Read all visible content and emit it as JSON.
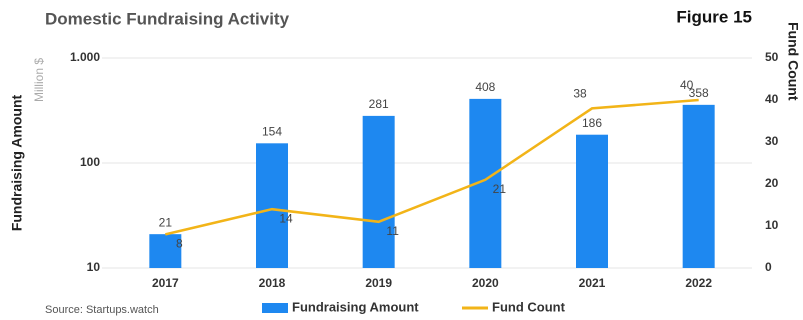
{
  "chart_data": {
    "type": "bar",
    "title": "Domestic Fundraising Activity",
    "figure_label": "Figure 15",
    "ylabel": "Fundraising Amount",
    "yunit": "Million $",
    "y2label": "Fund Count",
    "source": "Source: Startups.watch",
    "categories": [
      "2017",
      "2018",
      "2019",
      "2020",
      "2021",
      "2022"
    ],
    "series": [
      {
        "name": "Fundraising Amount",
        "type": "bar",
        "color": "#1e88f0",
        "values": [
          21,
          154,
          281,
          408,
          186,
          358
        ]
      },
      {
        "name": "Fund Count",
        "type": "line",
        "axis": "y2",
        "color": "#f2b418",
        "values": [
          8,
          14,
          11,
          21,
          38,
          40
        ]
      }
    ],
    "yscale": "log",
    "ylim": [
      10,
      1000
    ],
    "yticks": [
      10,
      100,
      {
        "value": 1000,
        "label": "1.000"
      }
    ],
    "y2lim": [
      0,
      50
    ],
    "y2ticks": [
      0,
      10,
      20,
      30,
      40,
      50
    ],
    "grid": true,
    "legend": "bottom"
  }
}
